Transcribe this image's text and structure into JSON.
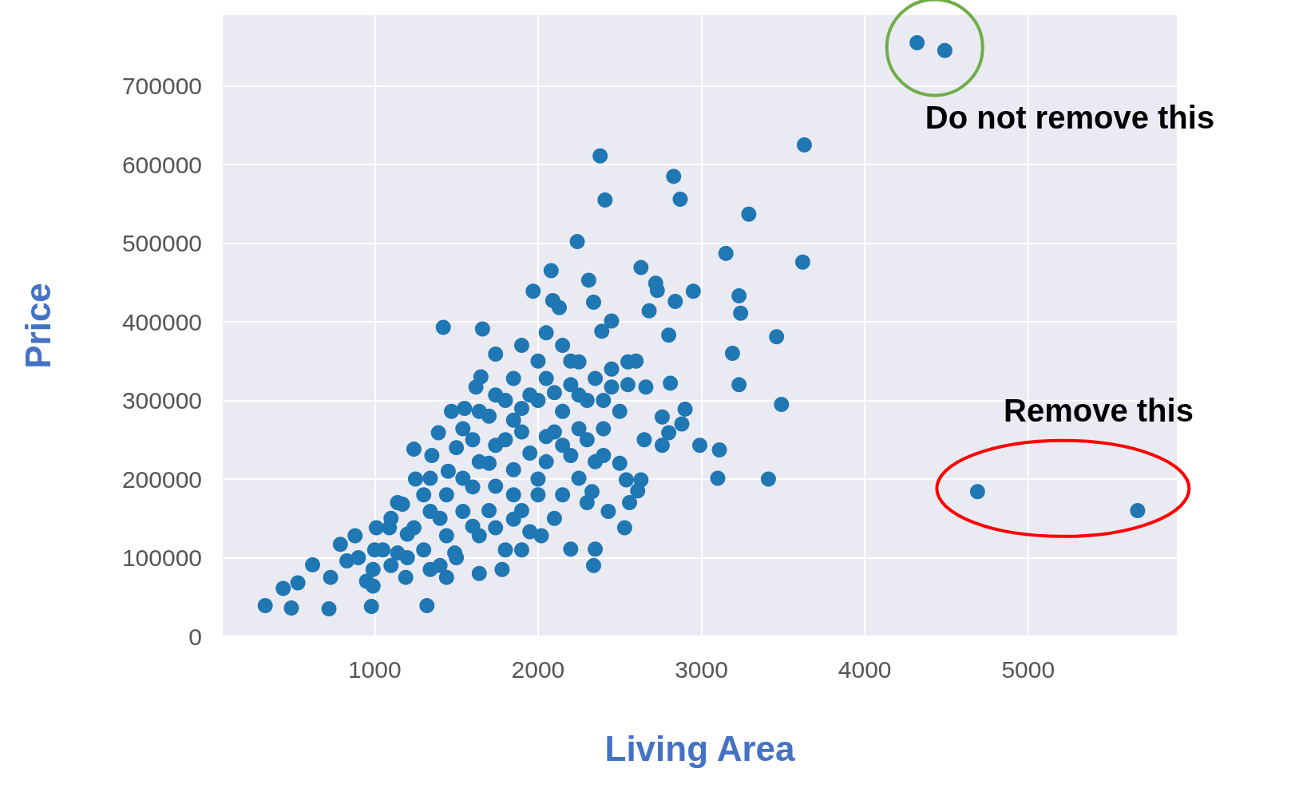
{
  "chart_data": {
    "type": "scatter",
    "xlabel": "Living Area",
    "ylabel": "Price",
    "xlim": [
      70,
      5910
    ],
    "ylim": [
      0,
      790000
    ],
    "xticks": [
      1000,
      2000,
      3000,
      4000,
      5000
    ],
    "yticks": [
      0,
      100000,
      200000,
      300000,
      400000,
      500000,
      600000,
      700000
    ],
    "grid": true,
    "marker": "circle",
    "annotations": [
      "Do not remove this",
      "Remove this"
    ],
    "series": [
      {
        "color": "#1f77b4",
        "x": [
          4320,
          4490,
          3630,
          2380,
          2830,
          2410,
          2870,
          3290,
          2240,
          3150,
          3620,
          2080,
          2630,
          2310,
          2720,
          2730,
          2950,
          1970,
          3230,
          2090,
          2340,
          2840,
          2130,
          3240,
          2680,
          2450,
          2390,
          1420,
          1660,
          3460,
          3190,
          3230,
          3490,
          3100,
          3410,
          3110,
          2990,
          4690,
          5670,
          2800,
          330,
          490,
          720,
          980,
          1320,
          440,
          530,
          620,
          790,
          1010,
          1170,
          1240,
          1390,
          1470,
          1620,
          1740,
          1900,
          2050,
          1780,
          1640,
          1440,
          2340,
          2350,
          2200,
          2560,
          2530,
          2430,
          2540,
          2630,
          2610,
          2330,
          2020,
          1900,
          1950,
          2760,
          2800,
          2760,
          2900,
          2880,
          2660,
          2810,
          2550,
          2250,
          2450,
          2250,
          2350,
          2150,
          830,
          990,
          1140,
          1240,
          1340,
          1440,
          1540,
          1640,
          1740,
          1850,
          1950,
          2050,
          2150,
          1740,
          1850,
          1950,
          2050,
          2150,
          2250,
          2350,
          2000,
          1850,
          1640,
          1490,
          1340,
          1190,
          990,
          730,
          880,
          1090,
          1540,
          1640,
          1340,
          1140,
          1850,
          1740,
          2250,
          2400,
          2500,
          2050,
          2150,
          1850,
          1540,
          1740,
          1440,
          900,
          1050,
          1100,
          1200,
          1300,
          1400,
          1300,
          1450,
          1500,
          1600,
          1600,
          1700,
          1700,
          1800,
          1800,
          1900,
          1900,
          2000,
          2000,
          2100,
          2100,
          2200,
          2200,
          2300,
          2300,
          2400,
          2450,
          2550,
          2600,
          2650,
          1700,
          1600,
          1500,
          1400,
          1200,
          1000,
          950,
          1100,
          1250,
          1350,
          1550,
          1650,
          2000,
          2200,
          2400,
          2500,
          2100,
          1900,
          1800,
          2300
        ],
        "values": [
          755000,
          745000,
          625000,
          611000,
          585000,
          555000,
          556000,
          537000,
          502000,
          487000,
          476000,
          465000,
          469000,
          453000,
          449000,
          440000,
          439000,
          439000,
          433000,
          427000,
          425000,
          426000,
          418000,
          411000,
          414000,
          401000,
          388000,
          393000,
          391000,
          381000,
          360000,
          320000,
          295000,
          201000,
          200000,
          237000,
          243000,
          184000,
          160000,
          383000,
          39000,
          36000,
          35000,
          38000,
          39000,
          61000,
          68000,
          91000,
          117000,
          138000,
          168000,
          238000,
          259000,
          286000,
          317000,
          359000,
          370000,
          386000,
          85000,
          80000,
          75000,
          90000,
          111000,
          111000,
          170000,
          138000,
          159000,
          199000,
          199000,
          185000,
          184000,
          128000,
          110000,
          133000,
          243000,
          259000,
          279000,
          289000,
          270000,
          317000,
          322000,
          349000,
          349000,
          317000,
          264000,
          222000,
          180000,
          96000,
          85000,
          106000,
          138000,
          159000,
          180000,
          201000,
          222000,
          243000,
          275000,
          307000,
          328000,
          370000,
          191000,
          212000,
          233000,
          254000,
          286000,
          307000,
          328000,
          180000,
          149000,
          128000,
          106000,
          85000,
          75000,
          64000,
          75000,
          128000,
          138000,
          264000,
          286000,
          201000,
          170000,
          328000,
          307000,
          201000,
          264000,
          286000,
          222000,
          243000,
          180000,
          159000,
          138000,
          128000,
          100000,
          110000,
          90000,
          130000,
          110000,
          150000,
          180000,
          210000,
          240000,
          190000,
          250000,
          220000,
          280000,
          250000,
          300000,
          260000,
          290000,
          300000,
          200000,
          260000,
          310000,
          230000,
          320000,
          250000,
          300000,
          300000,
          340000,
          320000,
          350000,
          250000,
          160000,
          140000,
          100000,
          90000,
          100000,
          110000,
          70000,
          150000,
          200000,
          230000,
          290000,
          330000,
          350000,
          350000,
          230000,
          220000,
          150000,
          160000,
          110000,
          170000
        ]
      }
    ]
  }
}
